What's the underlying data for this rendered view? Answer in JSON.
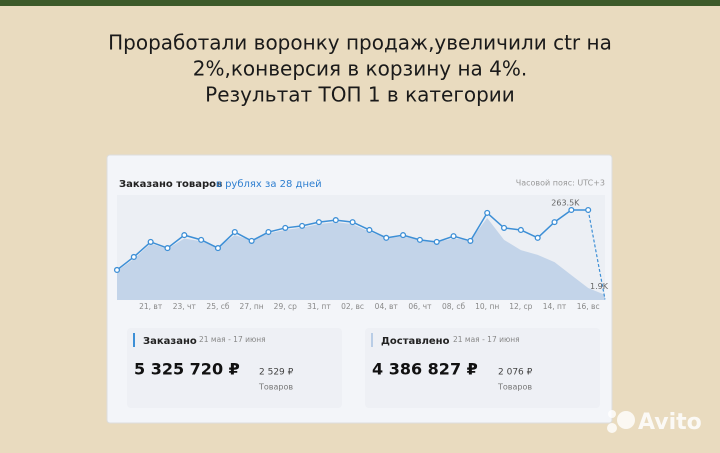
{
  "slide": {
    "title": [
      "Проработали воронку продаж,увеличили ctr на",
      "2%,конверсия в корзину на 4%.",
      "Результат ТОП 1 в категории"
    ]
  },
  "widget": {
    "title": "Заказано товаров",
    "period": "в рублях за 28 дней",
    "timezone": "Часовой пояс: UTC+3",
    "chart": {
      "type": "area-line",
      "categories": [
        null,
        null,
        "21, вт",
        null,
        "23, чт",
        null,
        "25, сб",
        null,
        "27, пн",
        null,
        "29, ср",
        null,
        "31, пт",
        null,
        "02, вс",
        null,
        "04, вт",
        null,
        "06, чт",
        null,
        "08, сб",
        null,
        "10, пн",
        null,
        "12, ср",
        null,
        "14, пт",
        null,
        "16, вс",
        null
      ],
      "series": [
        {
          "color": "#3d8fd6",
          "values": [
            88,
            126,
            170,
            152,
            190,
            176,
            152,
            199,
            173,
            199,
            211,
            217,
            228,
            234,
            228,
            205,
            182,
            190,
            176,
            170,
            187,
            173,
            255,
            211,
            205,
            182,
            228,
            263.5,
            263.5,
            1.9
          ]
        },
        {
          "color": "#b9cde6",
          "values": [
            85,
            120,
            165,
            150,
            180,
            172,
            155,
            190,
            175,
            195,
            205,
            212,
            222,
            228,
            222,
            200,
            182,
            186,
            176,
            170,
            180,
            175,
            240,
            176,
            146,
            132,
            111,
            73,
            35,
            15
          ]
        }
      ],
      "annotations": [
        {
          "index": 27,
          "label": "263.5K"
        },
        {
          "index": 29,
          "label": "1.9K"
        }
      ]
    },
    "stats": [
      {
        "name": "Заказано",
        "period": "21 мая - 17 июня",
        "amount": "5 325 720 ₽",
        "avg": "2 529 ₽",
        "unit": "Товаров"
      },
      {
        "name": "Доставлено",
        "period": "21 мая - 17 июня",
        "amount": "4 386 827 ₽",
        "avg": "2 076 ₽",
        "unit": "Товаров"
      }
    ]
  },
  "logo": "Avito"
}
